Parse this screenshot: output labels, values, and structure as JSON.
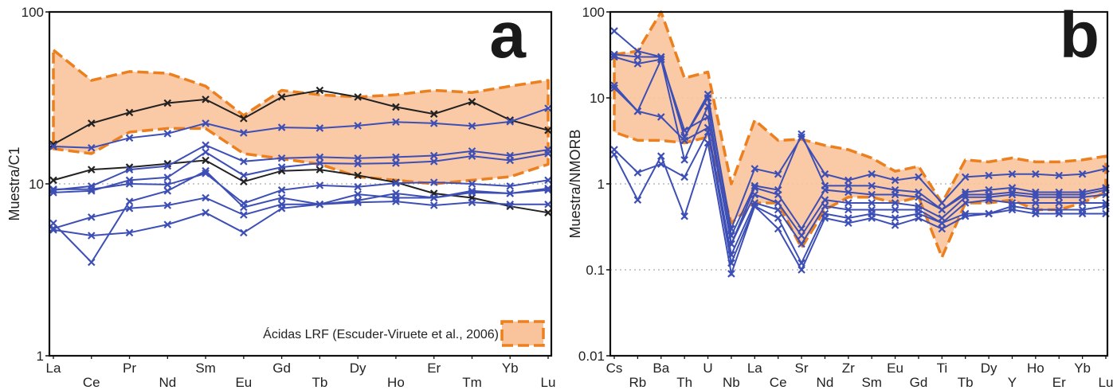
{
  "chart_data": [
    {
      "type": "line",
      "panel_letter": "a",
      "ylabel": "Muestra/C1",
      "yscale": "log",
      "ylim": [
        1,
        100
      ],
      "yticks": [
        "1",
        "10",
        "100"
      ],
      "categories": [
        "La",
        "Ce",
        "Pr",
        "Nd",
        "Sm",
        "Eu",
        "Gd",
        "Tb",
        "Dy",
        "Ho",
        "Er",
        "Tm",
        "Yb",
        "Lu"
      ],
      "reference_line": 10,
      "legend": {
        "label": "Ácidas LRF (Escuder-Viruete et al., 2006)",
        "placement": "bottom-right"
      },
      "field": {
        "upper": [
          60,
          40,
          45,
          44,
          37,
          25,
          35,
          33,
          32,
          33,
          35,
          34,
          37,
          40
        ],
        "lower": [
          16,
          15,
          20,
          21,
          21,
          15,
          14,
          13,
          11,
          10.5,
          10,
          10.5,
          11,
          13
        ]
      },
      "series": [
        {
          "color": "#222222",
          "values": [
            17,
            22.5,
            26,
            29.5,
            31,
            24,
            32,
            35,
            32,
            28,
            25.5,
            30,
            23.5,
            20.5
          ]
        },
        {
          "color": "#222222",
          "values": [
            10.5,
            12.1,
            12.5,
            13.1,
            13.7,
            10.3,
            11.9,
            12.1,
            11.2,
            10.2,
            8.8,
            8.3,
            7.4,
            6.8
          ]
        },
        {
          "color": "#3d4fb5",
          "values": [
            16.5,
            16.2,
            18.5,
            19.6,
            22.5,
            19.8,
            21.3,
            21.1,
            21.8,
            22.9,
            22.5,
            21.7,
            23,
            27.5
          ]
        },
        {
          "color": "#3d4fb5",
          "values": [
            9.2,
            9.7,
            12.1,
            12.7,
            16.8,
            13.5,
            14.1,
            14.3,
            14.1,
            14.3,
            14.6,
            15.5,
            14.6,
            15.8
          ]
        },
        {
          "color": "#3d4fb5",
          "values": [
            8.9,
            9.1,
            10.5,
            10.9,
            15.3,
            11.2,
            12.5,
            13.2,
            13.1,
            13.2,
            13.5,
            14.5,
            13.7,
            15
          ]
        },
        {
          "color": "#3d4fb5",
          "values": [
            9.3,
            9.3,
            10,
            9.9,
            11.5,
            7.7,
            9.2,
            9.8,
            9.6,
            10.1,
            10.2,
            10,
            9.7,
            10.5
          ]
        },
        {
          "color": "#3d4fb5",
          "values": [
            5.9,
            3.5,
            7.9,
            9.1,
            11.9,
            7.3,
            8.3,
            7.6,
            8.7,
            8.3,
            8.3,
            8.9,
            8.8,
            9.2
          ]
        },
        {
          "color": "#3d4fb5",
          "values": [
            5.5,
            6.4,
            7.2,
            7.5,
            8.3,
            6.6,
            7.6,
            7.6,
            8,
            8.8,
            8.3,
            9.1,
            8.8,
            9.4
          ]
        },
        {
          "color": "#3d4fb5",
          "values": [
            5.4,
            5,
            5.2,
            5.8,
            6.8,
            5.2,
            7.2,
            7.6,
            7.8,
            7.9,
            7.5,
            7.8,
            7.6,
            7.6
          ]
        }
      ]
    },
    {
      "type": "line",
      "panel_letter": "b",
      "ylabel": "Muestra/NMORB",
      "yscale": "log",
      "ylim": [
        0.01,
        100
      ],
      "yticks": [
        "0.01",
        "0.1",
        "1",
        "10",
        "100"
      ],
      "categories": [
        "Cs",
        "Rb",
        "Ba",
        "Th",
        "U",
        "Nb",
        "La",
        "Ce",
        "Sr",
        "Nd",
        "Zr",
        "Sm",
        "Eu",
        "Gd",
        "Ti",
        "Tb",
        "Dy",
        "Y",
        "Ho",
        "Er",
        "Yb",
        "Lu"
      ],
      "reference_lines": [
        0.1,
        1,
        10
      ],
      "field": {
        "upper": [
          32,
          35,
          100,
          17,
          20,
          1,
          5.5,
          3.2,
          3.3,
          2.8,
          2.5,
          2,
          1.4,
          1.6,
          0.6,
          1.9,
          1.8,
          2,
          1.8,
          1.8,
          1.9,
          2.1
        ],
        "lower": [
          4,
          3.2,
          3.2,
          3,
          3.5,
          0.35,
          0.6,
          0.6,
          0.18,
          0.5,
          0.7,
          0.7,
          0.6,
          0.7,
          0.14,
          0.6,
          0.6,
          0.65,
          0.5,
          0.5,
          0.6,
          0.8
        ]
      },
      "series": [
        {
          "color": "#3d4fb5",
          "values": [
            60,
            35,
            30,
            3.5,
            10,
            0.3,
            1.5,
            1.3,
            3.5,
            1.3,
            1.1,
            1.3,
            1.1,
            1.2,
            0.6,
            1.2,
            1.25,
            1.3,
            1.3,
            1.25,
            1.3,
            1.5
          ]
        },
        {
          "color": "#3d4fb5",
          "values": [
            32,
            30,
            30,
            3.5,
            11,
            0.25,
            0.95,
            0.85,
            3.8,
            0.95,
            0.95,
            0.95,
            0.85,
            0.8,
            0.5,
            0.8,
            0.85,
            0.9,
            0.8,
            0.8,
            0.8,
            0.9
          ]
        },
        {
          "color": "#3d4fb5",
          "values": [
            30,
            25,
            28,
            1.9,
            8,
            0.2,
            0.9,
            0.75,
            0.3,
            0.85,
            0.8,
            0.75,
            0.75,
            0.7,
            0.5,
            0.75,
            0.75,
            0.8,
            0.75,
            0.75,
            0.75,
            0.85
          ]
        },
        {
          "color": "#3d4fb5",
          "values": [
            14,
            7,
            28,
            4.2,
            6,
            0.2,
            0.75,
            0.6,
            0.25,
            0.65,
            0.6,
            0.6,
            0.6,
            0.55,
            0.4,
            0.7,
            0.7,
            0.75,
            0.7,
            0.7,
            0.7,
            0.75
          ]
        },
        {
          "color": "#3d4fb5",
          "values": [
            13,
            7,
            6,
            3.2,
            4.5,
            0.15,
            0.6,
            0.5,
            0.2,
            0.55,
            0.5,
            0.5,
            0.5,
            0.5,
            0.35,
            0.6,
            0.65,
            0.6,
            0.6,
            0.6,
            0.6,
            0.6
          ]
        },
        {
          "color": "#3d4fb5",
          "values": [
            2.5,
            1.35,
            1.7,
            1.2,
            4,
            0.12,
            0.55,
            0.4,
            0.12,
            0.45,
            0.4,
            0.45,
            0.4,
            0.45,
            0.35,
            0.45,
            0.45,
            0.5,
            0.45,
            0.45,
            0.45,
            0.45
          ]
        },
        {
          "color": "#3d4fb5",
          "values": [
            2.2,
            0.65,
            2.1,
            0.42,
            3,
            0.09,
            0.55,
            0.3,
            0.1,
            0.4,
            0.35,
            0.4,
            0.33,
            0.4,
            0.3,
            0.42,
            0.45,
            0.55,
            0.5,
            0.5,
            0.5,
            0.55
          ]
        }
      ]
    }
  ]
}
